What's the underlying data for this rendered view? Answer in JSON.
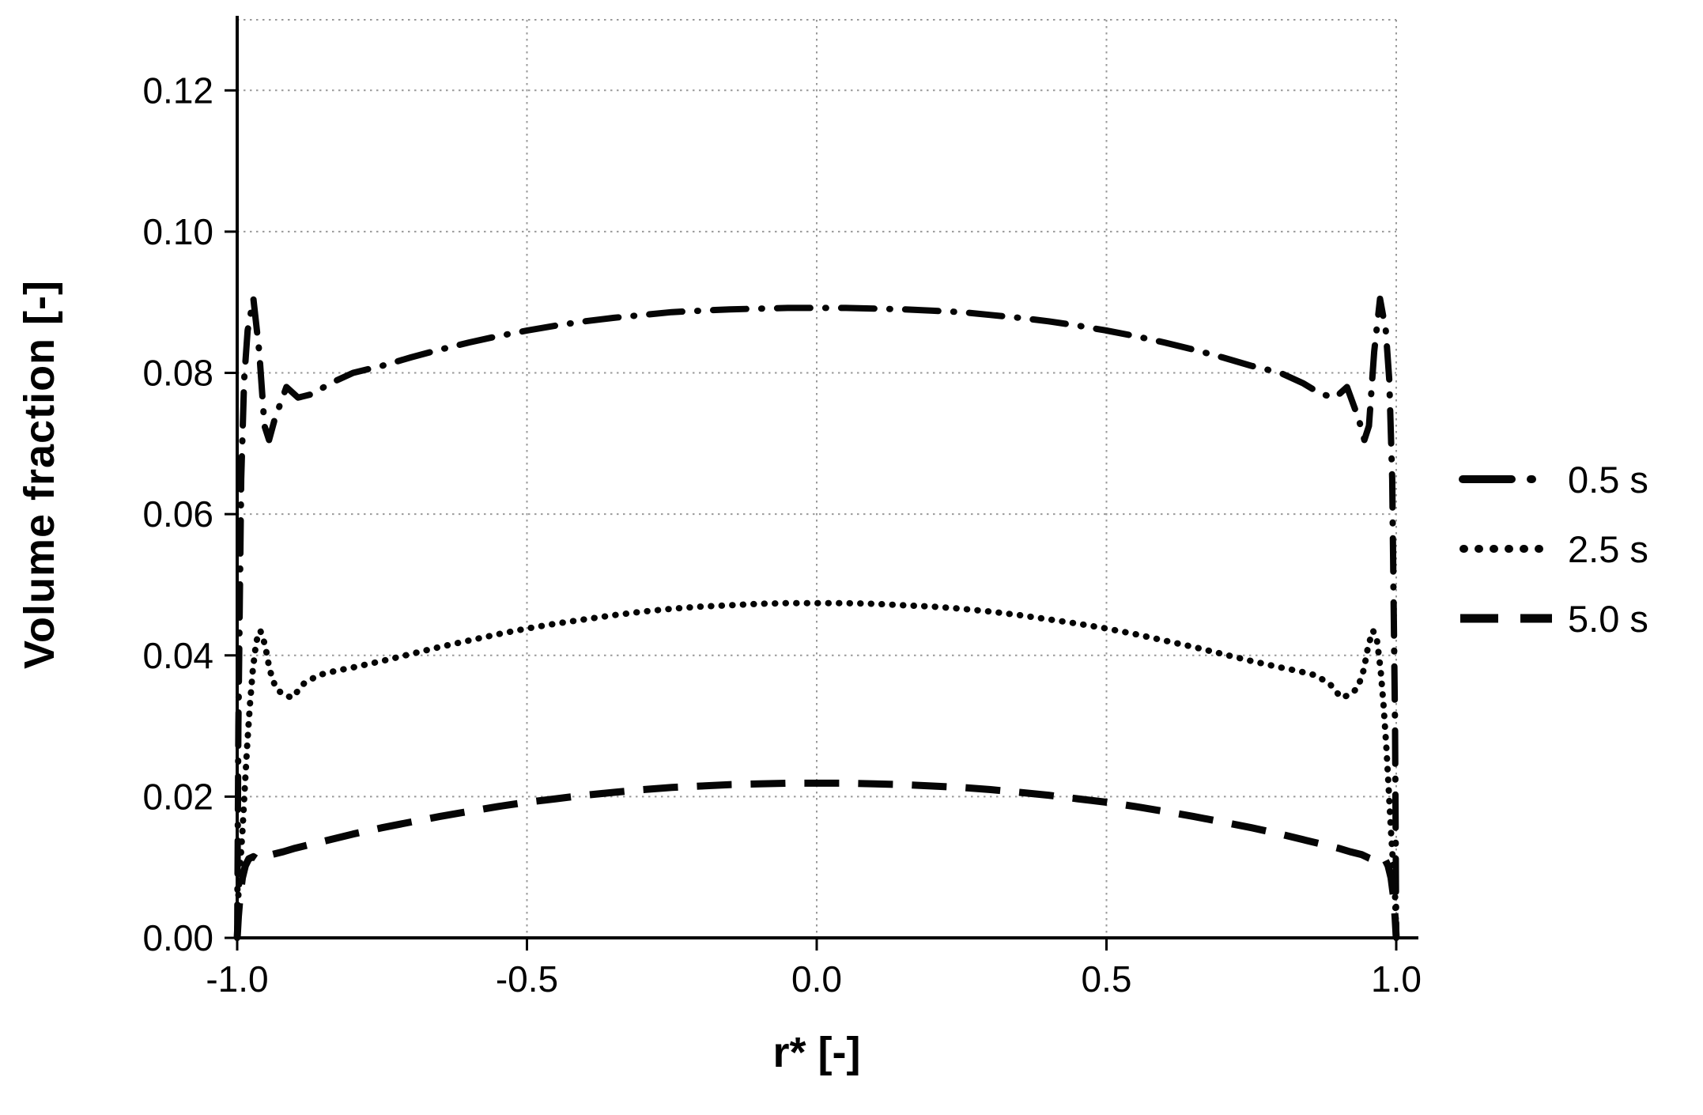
{
  "chart_data": {
    "type": "line",
    "title": "",
    "xlabel": "r* [-]",
    "ylabel": "Volume  fraction [-]",
    "xlim": [
      -1.0,
      1.0
    ],
    "ylim": [
      0.0,
      0.13
    ],
    "grid": "dotted",
    "legend_position": "right-outside",
    "xticks": {
      "values": [
        -1.0,
        -0.5,
        0.0,
        0.5,
        1.0
      ],
      "labels": [
        "-1.0",
        "-0.5",
        "0.0",
        "0.5",
        "1.0"
      ]
    },
    "yticks": {
      "values": [
        0.0,
        0.02,
        0.04,
        0.06,
        0.08,
        0.1,
        0.12
      ],
      "labels": [
        "0.00",
        "0.02",
        "0.04",
        "0.06",
        "0.08",
        "0.10",
        "0.12"
      ]
    },
    "series": [
      {
        "name": "0.5 s",
        "style": "dash-dot",
        "points": [
          [
            -1.0,
            0.0
          ],
          [
            -0.998,
            0.03
          ],
          [
            -0.993,
            0.065
          ],
          [
            -0.988,
            0.079
          ],
          [
            -0.982,
            0.086
          ],
          [
            -0.972,
            0.0905
          ],
          [
            -0.962,
            0.083
          ],
          [
            -0.953,
            0.0725
          ],
          [
            -0.945,
            0.0705
          ],
          [
            -0.935,
            0.0735
          ],
          [
            -0.915,
            0.078
          ],
          [
            -0.895,
            0.0765
          ],
          [
            -0.87,
            0.077
          ],
          [
            -0.84,
            0.0785
          ],
          [
            -0.8,
            0.08
          ],
          [
            -0.75,
            0.081
          ],
          [
            -0.7,
            0.0822
          ],
          [
            -0.65,
            0.0833
          ],
          [
            -0.6,
            0.0843
          ],
          [
            -0.55,
            0.0852
          ],
          [
            -0.5,
            0.086
          ],
          [
            -0.45,
            0.0867
          ],
          [
            -0.4,
            0.0873
          ],
          [
            -0.35,
            0.0878
          ],
          [
            -0.3,
            0.0882
          ],
          [
            -0.25,
            0.0886
          ],
          [
            -0.2,
            0.0888
          ],
          [
            -0.15,
            0.089
          ],
          [
            -0.1,
            0.0891
          ],
          [
            -0.05,
            0.0892
          ],
          [
            0.0,
            0.0892
          ],
          [
            0.05,
            0.0892
          ],
          [
            0.1,
            0.0891
          ],
          [
            0.15,
            0.089
          ],
          [
            0.2,
            0.0888
          ],
          [
            0.25,
            0.0886
          ],
          [
            0.3,
            0.0882
          ],
          [
            0.35,
            0.0878
          ],
          [
            0.4,
            0.0873
          ],
          [
            0.45,
            0.0867
          ],
          [
            0.5,
            0.086
          ],
          [
            0.55,
            0.0852
          ],
          [
            0.6,
            0.0843
          ],
          [
            0.65,
            0.0833
          ],
          [
            0.7,
            0.0822
          ],
          [
            0.75,
            0.081
          ],
          [
            0.8,
            0.08
          ],
          [
            0.84,
            0.0785
          ],
          [
            0.87,
            0.077
          ],
          [
            0.895,
            0.0765
          ],
          [
            0.915,
            0.078
          ],
          [
            0.935,
            0.0735
          ],
          [
            0.945,
            0.0705
          ],
          [
            0.953,
            0.0725
          ],
          [
            0.962,
            0.083
          ],
          [
            0.972,
            0.0905
          ],
          [
            0.982,
            0.086
          ],
          [
            0.988,
            0.079
          ],
          [
            0.993,
            0.065
          ],
          [
            0.998,
            0.03
          ],
          [
            1.0,
            0.0
          ]
        ]
      },
      {
        "name": "2.5 s",
        "style": "dotted",
        "points": [
          [
            -1.0,
            0.0
          ],
          [
            -0.998,
            0.006
          ],
          [
            -0.995,
            0.01
          ],
          [
            -0.991,
            0.015
          ],
          [
            -0.987,
            0.021
          ],
          [
            -0.983,
            0.027
          ],
          [
            -0.978,
            0.033
          ],
          [
            -0.973,
            0.038
          ],
          [
            -0.967,
            0.042
          ],
          [
            -0.96,
            0.0435
          ],
          [
            -0.952,
            0.0415
          ],
          [
            -0.944,
            0.038
          ],
          [
            -0.934,
            0.0355
          ],
          [
            -0.922,
            0.0345
          ],
          [
            -0.905,
            0.034
          ],
          [
            -0.885,
            0.036
          ],
          [
            -0.86,
            0.0372
          ],
          [
            -0.83,
            0.0378
          ],
          [
            -0.8,
            0.0383
          ],
          [
            -0.75,
            0.0392
          ],
          [
            -0.7,
            0.0402
          ],
          [
            -0.65,
            0.0412
          ],
          [
            -0.6,
            0.0421
          ],
          [
            -0.55,
            0.043
          ],
          [
            -0.5,
            0.0438
          ],
          [
            -0.45,
            0.0445
          ],
          [
            -0.4,
            0.0451
          ],
          [
            -0.35,
            0.0457
          ],
          [
            -0.3,
            0.0462
          ],
          [
            -0.25,
            0.0466
          ],
          [
            -0.2,
            0.0469
          ],
          [
            -0.15,
            0.0471
          ],
          [
            -0.1,
            0.0473
          ],
          [
            -0.05,
            0.0474
          ],
          [
            0.0,
            0.0474
          ],
          [
            0.05,
            0.0474
          ],
          [
            0.1,
            0.0473
          ],
          [
            0.15,
            0.0471
          ],
          [
            0.2,
            0.0469
          ],
          [
            0.25,
            0.0466
          ],
          [
            0.3,
            0.0462
          ],
          [
            0.35,
            0.0457
          ],
          [
            0.4,
            0.0451
          ],
          [
            0.45,
            0.0445
          ],
          [
            0.5,
            0.0438
          ],
          [
            0.55,
            0.043
          ],
          [
            0.6,
            0.0421
          ],
          [
            0.65,
            0.0412
          ],
          [
            0.7,
            0.0402
          ],
          [
            0.75,
            0.0392
          ],
          [
            0.8,
            0.0383
          ],
          [
            0.83,
            0.0378
          ],
          [
            0.86,
            0.0372
          ],
          [
            0.885,
            0.036
          ],
          [
            0.905,
            0.034
          ],
          [
            0.922,
            0.0345
          ],
          [
            0.934,
            0.0355
          ],
          [
            0.944,
            0.038
          ],
          [
            0.952,
            0.0415
          ],
          [
            0.96,
            0.0435
          ],
          [
            0.967,
            0.042
          ],
          [
            0.973,
            0.038
          ],
          [
            0.978,
            0.033
          ],
          [
            0.983,
            0.027
          ],
          [
            0.987,
            0.021
          ],
          [
            0.991,
            0.015
          ],
          [
            0.995,
            0.01
          ],
          [
            0.998,
            0.006
          ],
          [
            1.0,
            0.0
          ]
        ]
      },
      {
        "name": "5.0 s",
        "style": "dashed",
        "points": [
          [
            -1.0,
            0.0
          ],
          [
            -0.998,
            0.003
          ],
          [
            -0.995,
            0.006
          ],
          [
            -0.991,
            0.0085
          ],
          [
            -0.986,
            0.0102
          ],
          [
            -0.98,
            0.0112
          ],
          [
            -0.972,
            0.0115
          ],
          [
            -0.963,
            0.011
          ],
          [
            -0.953,
            0.0113
          ],
          [
            -0.94,
            0.0118
          ],
          [
            -0.92,
            0.0122
          ],
          [
            -0.9,
            0.0127
          ],
          [
            -0.87,
            0.0133
          ],
          [
            -0.84,
            0.0139
          ],
          [
            -0.8,
            0.0147
          ],
          [
            -0.75,
            0.0156
          ],
          [
            -0.7,
            0.0164
          ],
          [
            -0.65,
            0.0172
          ],
          [
            -0.6,
            0.0179
          ],
          [
            -0.55,
            0.0186
          ],
          [
            -0.5,
            0.0192
          ],
          [
            -0.45,
            0.0197
          ],
          [
            -0.4,
            0.0202
          ],
          [
            -0.35,
            0.0206
          ],
          [
            -0.3,
            0.021
          ],
          [
            -0.25,
            0.0213
          ],
          [
            -0.2,
            0.0215
          ],
          [
            -0.15,
            0.0217
          ],
          [
            -0.1,
            0.0218
          ],
          [
            -0.05,
            0.0219
          ],
          [
            0.0,
            0.0219
          ],
          [
            0.05,
            0.0219
          ],
          [
            0.1,
            0.0218
          ],
          [
            0.15,
            0.0217
          ],
          [
            0.2,
            0.0215
          ],
          [
            0.25,
            0.0213
          ],
          [
            0.3,
            0.021
          ],
          [
            0.35,
            0.0206
          ],
          [
            0.4,
            0.0202
          ],
          [
            0.45,
            0.0197
          ],
          [
            0.5,
            0.0192
          ],
          [
            0.55,
            0.0186
          ],
          [
            0.6,
            0.0179
          ],
          [
            0.65,
            0.0172
          ],
          [
            0.7,
            0.0164
          ],
          [
            0.75,
            0.0156
          ],
          [
            0.8,
            0.0147
          ],
          [
            0.84,
            0.0139
          ],
          [
            0.87,
            0.0133
          ],
          [
            0.9,
            0.0127
          ],
          [
            0.92,
            0.0122
          ],
          [
            0.94,
            0.0118
          ],
          [
            0.953,
            0.0113
          ],
          [
            0.963,
            0.011
          ],
          [
            0.972,
            0.0115
          ],
          [
            0.98,
            0.0112
          ],
          [
            0.986,
            0.0102
          ],
          [
            0.991,
            0.0085
          ],
          [
            0.995,
            0.006
          ],
          [
            0.998,
            0.003
          ],
          [
            1.0,
            0.0
          ]
        ]
      }
    ]
  }
}
